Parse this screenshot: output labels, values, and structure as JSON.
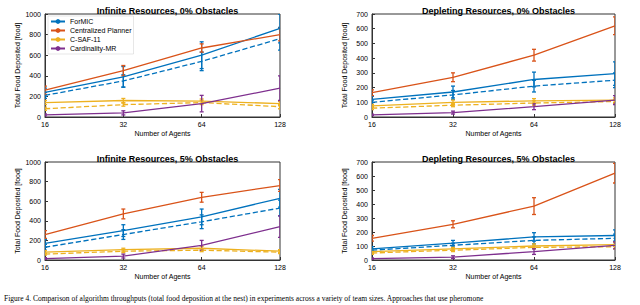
{
  "chart_data": [
    {
      "type": "line",
      "title": "Infinite Resources, 0% Obstacles",
      "x_label": "Number of Agents",
      "y_label": "Total Food Deposited [food]",
      "x": [
        16,
        32,
        64,
        128
      ],
      "xlim": [
        16,
        128
      ],
      "xticks": [
        16,
        32,
        64,
        128
      ],
      "log": "x",
      "ylim": [
        0,
        1000
      ],
      "yticks": [
        0,
        200,
        400,
        600,
        800,
        1000
      ],
      "grid": false,
      "legend": "upper left",
      "series": [
        {
          "name": "ForMIC",
          "color": "#0072bd",
          "line_style": "solid",
          "values": [
            240,
            390,
            600,
            860
          ],
          "errors": [
            40,
            100,
            130,
            140
          ]
        },
        {
          "name": "ForMIC",
          "color": "#0072bd",
          "line_style": "dashed",
          "values": [
            210,
            350,
            540,
            760
          ],
          "errors": [
            30,
            60,
            90,
            110
          ]
        },
        {
          "name": "Centralized Planner",
          "color": "#d95319",
          "line_style": "solid",
          "values": [
            260,
            450,
            670,
            800
          ],
          "errors": [
            40,
            50,
            40,
            60
          ]
        },
        {
          "name": "C-SAF-11",
          "color": "#edb120",
          "line_style": "solid",
          "values": [
            140,
            160,
            155,
            130
          ],
          "errors": [
            20,
            20,
            20,
            20
          ]
        },
        {
          "name": "C-SAF-11",
          "color": "#edb120",
          "line_style": "dashed",
          "values": [
            80,
            120,
            140,
            100
          ],
          "errors": [
            15,
            15,
            20,
            20
          ]
        },
        {
          "name": "Cardinality-MR",
          "color": "#7e2f8e",
          "line_style": "solid",
          "values": [
            20,
            40,
            130,
            280
          ],
          "errors": [
            10,
            20,
            80,
            120
          ]
        }
      ]
    },
    {
      "type": "line",
      "title": "Depleting Resources, 0% Obstacles",
      "x_label": "Number of Agents",
      "y_label": "Total Food Deposited [food]",
      "x": [
        16,
        32,
        64,
        128
      ],
      "xlim": [
        16,
        128
      ],
      "xticks": [
        16,
        32,
        64,
        128
      ],
      "log": "x",
      "ylim": [
        0,
        700
      ],
      "yticks": [
        0,
        100,
        200,
        300,
        400,
        500,
        600,
        700
      ],
      "grid": false,
      "series": [
        {
          "name": "ForMIC",
          "color": "#0072bd",
          "line_style": "solid",
          "values": [
            120,
            170,
            255,
            295
          ],
          "errors": [
            20,
            40,
            50,
            80
          ]
        },
        {
          "name": "ForMIC",
          "color": "#0072bd",
          "line_style": "dashed",
          "values": [
            100,
            150,
            210,
            250
          ],
          "errors": [
            15,
            30,
            40,
            50
          ]
        },
        {
          "name": "Centralized Planner",
          "color": "#d95319",
          "line_style": "solid",
          "values": [
            165,
            270,
            420,
            620
          ],
          "errors": [
            20,
            30,
            40,
            60
          ]
        },
        {
          "name": "C-SAF-11",
          "color": "#edb120",
          "line_style": "solid",
          "values": [
            75,
            100,
            110,
            115
          ],
          "errors": [
            10,
            15,
            15,
            15
          ]
        },
        {
          "name": "C-SAF-11",
          "color": "#edb120",
          "line_style": "dashed",
          "values": [
            60,
            80,
            95,
            105
          ],
          "errors": [
            10,
            10,
            15,
            15
          ]
        },
        {
          "name": "Cardinality-MR",
          "color": "#7e2f8e",
          "line_style": "solid",
          "values": [
            15,
            30,
            70,
            115
          ],
          "errors": [
            5,
            10,
            20,
            30
          ]
        }
      ]
    },
    {
      "type": "line",
      "title": "Infinite Resources, 5% Obstacles",
      "x_label": "Number of Agents",
      "y_label": "Total Food Deposited [food]",
      "x": [
        16,
        32,
        64,
        128
      ],
      "xlim": [
        16,
        128
      ],
      "xticks": [
        16,
        32,
        64,
        128
      ],
      "log": "x",
      "ylim": [
        0,
        1000
      ],
      "yticks": [
        0,
        200,
        400,
        600,
        800,
        1000
      ],
      "grid": false,
      "series": [
        {
          "name": "ForMIC",
          "color": "#0072bd",
          "line_style": "solid",
          "values": [
            170,
            300,
            440,
            630
          ],
          "errors": [
            40,
            60,
            80,
            90
          ]
        },
        {
          "name": "ForMIC",
          "color": "#0072bd",
          "line_style": "dashed",
          "values": [
            130,
            260,
            390,
            530
          ],
          "errors": [
            30,
            50,
            70,
            80
          ]
        },
        {
          "name": "Centralized Planner",
          "color": "#d95319",
          "line_style": "solid",
          "values": [
            260,
            470,
            640,
            760
          ],
          "errors": [
            40,
            50,
            50,
            60
          ]
        },
        {
          "name": "C-SAF-11",
          "color": "#edb120",
          "line_style": "solid",
          "values": [
            80,
            105,
            120,
            90
          ],
          "errors": [
            15,
            15,
            20,
            15
          ]
        },
        {
          "name": "C-SAF-11",
          "color": "#edb120",
          "line_style": "dashed",
          "values": [
            60,
            90,
            100,
            80
          ],
          "errors": [
            10,
            15,
            15,
            15
          ]
        },
        {
          "name": "Cardinality-MR",
          "color": "#7e2f8e",
          "line_style": "solid",
          "values": [
            15,
            40,
            150,
            340
          ],
          "errors": [
            10,
            20,
            50,
            110
          ]
        }
      ]
    },
    {
      "type": "line",
      "title": "Depleting Resources, 5% Obstacles",
      "x_label": "Number of Agents",
      "y_label": "Total Food Deposited [food]",
      "x": [
        16,
        32,
        64,
        128
      ],
      "xlim": [
        16,
        128
      ],
      "xticks": [
        16,
        32,
        64,
        128
      ],
      "log": "x",
      "ylim": [
        0,
        700
      ],
      "yticks": [
        0,
        100,
        200,
        300,
        400,
        500,
        600,
        700
      ],
      "grid": false,
      "series": [
        {
          "name": "ForMIC",
          "color": "#0072bd",
          "line_style": "solid",
          "values": [
            80,
            120,
            165,
            175
          ],
          "errors": [
            15,
            20,
            30,
            40
          ]
        },
        {
          "name": "ForMIC",
          "color": "#0072bd",
          "line_style": "dashed",
          "values": [
            70,
            105,
            140,
            155
          ],
          "errors": [
            10,
            15,
            25,
            30
          ]
        },
        {
          "name": "Centralized Planner",
          "color": "#d95319",
          "line_style": "solid",
          "values": [
            155,
            255,
            385,
            620
          ],
          "errors": [
            20,
            25,
            60,
            70
          ]
        },
        {
          "name": "C-SAF-11",
          "color": "#edb120",
          "line_style": "solid",
          "values": [
            60,
            80,
            100,
            110
          ],
          "errors": [
            10,
            10,
            15,
            15
          ]
        },
        {
          "name": "C-SAF-11",
          "color": "#edb120",
          "line_style": "dashed",
          "values": [
            50,
            70,
            90,
            95
          ],
          "errors": [
            10,
            10,
            10,
            15
          ]
        },
        {
          "name": "Cardinality-MR",
          "color": "#7e2f8e",
          "line_style": "solid",
          "values": [
            10,
            20,
            60,
            105
          ],
          "errors": [
            5,
            10,
            20,
            25
          ]
        }
      ]
    }
  ],
  "caption": "Figure 4. Comparison of algorithm throughputs (total food deposition at the nest) in experiments across a variety of team sizes. Approaches that use pheromone"
}
